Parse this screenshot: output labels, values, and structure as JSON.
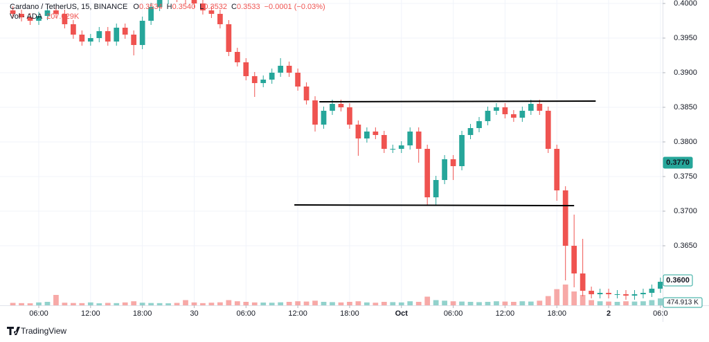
{
  "chart_data": {
    "type": "candlestick",
    "legend": {
      "symbol": "Cardano / TetherUS, 15, BINANCE",
      "ohlc": [
        {
          "key": "O",
          "value": "0.3534"
        },
        {
          "key": "H",
          "value": "0.3540"
        },
        {
          "key": "L",
          "value": "0.3532"
        },
        {
          "key": "C",
          "value": "0.3533"
        }
      ],
      "change": "−0.0001 (−0.03%)",
      "volume_label": "Vol · ADA",
      "volume_value": "207.029K"
    },
    "x": [
      3,
      4,
      5,
      6,
      7,
      8,
      9,
      10,
      11,
      12,
      13,
      14,
      15,
      16,
      17,
      18,
      19,
      20,
      21,
      22,
      23,
      24,
      25,
      26,
      27,
      28,
      29,
      30,
      31,
      32,
      33,
      34,
      35,
      36,
      37,
      38,
      39,
      40,
      41,
      42,
      43,
      44,
      45,
      46,
      47,
      48,
      49,
      50,
      51,
      52,
      53,
      54,
      55,
      56,
      57,
      58,
      59,
      60,
      61,
      62,
      63,
      64,
      65,
      66,
      67,
      68,
      69,
      70,
      71,
      72,
      73,
      74,
      75,
      76,
      77,
      78
    ],
    "open": [
      0.399,
      0.3985,
      0.398,
      0.3975,
      0.3982,
      0.399,
      0.3985,
      0.397,
      0.3955,
      0.3945,
      0.395,
      0.396,
      0.3945,
      0.3965,
      0.3955,
      0.394,
      0.3975,
      0.3995,
      0.4005,
      0.401,
      0.4008,
      0.4005,
      0.4,
      0.399,
      0.3985,
      0.397,
      0.393,
      0.3915,
      0.3895,
      0.3885,
      0.389,
      0.39,
      0.391,
      0.39,
      0.388,
      0.386,
      0.3825,
      0.3845,
      0.3855,
      0.385,
      0.3825,
      0.3805,
      0.3815,
      0.381,
      0.379,
      0.379,
      0.3795,
      0.3815,
      0.379,
      0.372,
      0.3745,
      0.3775,
      0.3765,
      0.381,
      0.382,
      0.383,
      0.3845,
      0.385,
      0.384,
      0.3835,
      0.3845,
      0.3855,
      0.3845,
      0.379,
      0.373,
      0.365,
      0.361,
      0.3585,
      0.358,
      0.3582,
      0.358,
      0.358,
      0.3578,
      0.358,
      0.3582,
      0.3588
    ],
    "high": [
      0.3996,
      0.3991,
      0.3986,
      0.3988,
      0.3996,
      0.3996,
      0.3991,
      0.3976,
      0.3961,
      0.3956,
      0.3966,
      0.3966,
      0.3971,
      0.3971,
      0.3961,
      0.3981,
      0.4001,
      0.4011,
      0.4016,
      0.4016,
      0.4014,
      0.4011,
      0.4006,
      0.3996,
      0.3991,
      0.3976,
      0.3936,
      0.3921,
      0.3901,
      0.3896,
      0.3906,
      0.3921,
      0.3916,
      0.3906,
      0.3886,
      0.3866,
      0.3851,
      0.3861,
      0.3861,
      0.3856,
      0.3831,
      0.3821,
      0.3821,
      0.3816,
      0.3796,
      0.3801,
      0.3821,
      0.3821,
      0.3796,
      0.3751,
      0.3781,
      0.3781,
      0.3816,
      0.3826,
      0.3836,
      0.3851,
      0.3856,
      0.3856,
      0.3846,
      0.3851,
      0.3861,
      0.3861,
      0.3851,
      0.3796,
      0.3736,
      0.3695,
      0.366,
      0.3591,
      0.3588,
      0.3588,
      0.3586,
      0.3586,
      0.3586,
      0.3588,
      0.3594,
      0.3604
    ],
    "low": [
      0.3979,
      0.3974,
      0.3969,
      0.3969,
      0.3976,
      0.3979,
      0.3964,
      0.3949,
      0.3939,
      0.3939,
      0.3944,
      0.3939,
      0.3939,
      0.3949,
      0.3925,
      0.3934,
      0.3969,
      0.3989,
      0.3999,
      0.4002,
      0.3999,
      0.3994,
      0.3984,
      0.3979,
      0.3964,
      0.3924,
      0.3909,
      0.3889,
      0.3865,
      0.3879,
      0.3884,
      0.3894,
      0.3894,
      0.3874,
      0.3854,
      0.3815,
      0.3819,
      0.3839,
      0.3844,
      0.3819,
      0.378,
      0.3799,
      0.3804,
      0.3784,
      0.3784,
      0.3784,
      0.3789,
      0.377,
      0.3708,
      0.3708,
      0.3739,
      0.3745,
      0.3759,
      0.3804,
      0.3814,
      0.3824,
      0.3839,
      0.3834,
      0.3829,
      0.3829,
      0.3839,
      0.3839,
      0.3784,
      0.3715,
      0.36,
      0.359,
      0.3577,
      0.3574,
      0.3574,
      0.3574,
      0.3574,
      0.3572,
      0.3572,
      0.3574,
      0.3576,
      0.3582
    ],
    "close": [
      0.3985,
      0.398,
      0.3975,
      0.3982,
      0.399,
      0.3985,
      0.397,
      0.3955,
      0.3945,
      0.395,
      0.396,
      0.3945,
      0.3965,
      0.3955,
      0.394,
      0.3975,
      0.3995,
      0.4005,
      0.401,
      0.4008,
      0.4005,
      0.4,
      0.399,
      0.3985,
      0.397,
      0.393,
      0.3915,
      0.3895,
      0.3885,
      0.389,
      0.39,
      0.391,
      0.39,
      0.388,
      0.386,
      0.3825,
      0.3845,
      0.3855,
      0.385,
      0.3825,
      0.3805,
      0.3815,
      0.381,
      0.379,
      0.379,
      0.3795,
      0.3815,
      0.379,
      0.372,
      0.3745,
      0.3775,
      0.3765,
      0.381,
      0.382,
      0.383,
      0.3845,
      0.385,
      0.384,
      0.3835,
      0.3845,
      0.3855,
      0.3845,
      0.379,
      0.373,
      0.365,
      0.361,
      0.3585,
      0.358,
      0.3582,
      0.358,
      0.358,
      0.3578,
      0.358,
      0.3582,
      0.3588,
      0.3598
    ],
    "volume": [
      420,
      380,
      350,
      500,
      600,
      1800,
      450,
      400,
      380,
      500,
      350,
      420,
      380,
      500,
      700,
      450,
      400,
      380,
      350,
      420,
      900,
      500,
      380,
      450,
      520,
      900,
      700,
      600,
      500,
      480,
      450,
      520,
      600,
      700,
      650,
      800,
      600,
      550,
      500,
      600,
      700,
      500,
      450,
      600,
      550,
      500,
      700,
      600,
      1500,
      900,
      800,
      700,
      650,
      600,
      550,
      600,
      700,
      650,
      600,
      700,
      650,
      800,
      1600,
      2800,
      3600,
      2400,
      1800,
      900,
      700,
      650,
      600,
      700,
      650,
      700,
      900,
      1200
    ],
    "up_color": "#26a69a",
    "down_color": "#ef5350",
    "xlim": [
      1.51,
      78.25
    ],
    "xticks": [
      {
        "value": 6,
        "label": "06:00"
      },
      {
        "value": 12,
        "label": "12:00"
      },
      {
        "value": 18,
        "label": "18:00"
      },
      {
        "value": 24,
        "label": "30"
      },
      {
        "value": 30,
        "label": "06:00"
      },
      {
        "value": 36,
        "label": "12:00"
      },
      {
        "value": 42,
        "label": "18:00"
      },
      {
        "value": 48,
        "label": "Oct"
      },
      {
        "value": 54,
        "label": "06:00"
      },
      {
        "value": 60,
        "label": "12:00"
      },
      {
        "value": 66,
        "label": "18:00"
      },
      {
        "value": 72,
        "label": "2"
      },
      {
        "value": 78,
        "label": "06:0"
      }
    ],
    "ylim": [
      0.3555,
      0.4005
    ],
    "yticks": [
      {
        "value": 0.4,
        "label": "0.4000"
      },
      {
        "value": 0.395,
        "label": "0.3950"
      },
      {
        "value": 0.39,
        "label": "0.3900"
      },
      {
        "value": 0.385,
        "label": "0.3850"
      },
      {
        "value": 0.38,
        "label": "0.3800"
      },
      {
        "value": 0.375,
        "label": "0.3750"
      },
      {
        "value": 0.37,
        "label": "0.3700"
      },
      {
        "value": 0.365,
        "label": "0.3650"
      }
    ],
    "volume_lim": [
      0,
      12000
    ],
    "price_tags": [
      {
        "value": 0.377,
        "label": "0.3770",
        "style": "filled"
      },
      {
        "value": 0.36,
        "label": "0.3600",
        "style": "outline"
      }
    ],
    "volume_tag": {
      "value": 474.913,
      "label": "474.913 K"
    },
    "drawings": [
      {
        "x": [
          38.5,
          70.5
        ],
        "y": [
          0.3858,
          0.3859
        ]
      },
      {
        "x": [
          35.6,
          68.0
        ],
        "y": [
          0.3709,
          0.3708
        ]
      }
    ],
    "grid": true
  },
  "branding": "TradingView"
}
